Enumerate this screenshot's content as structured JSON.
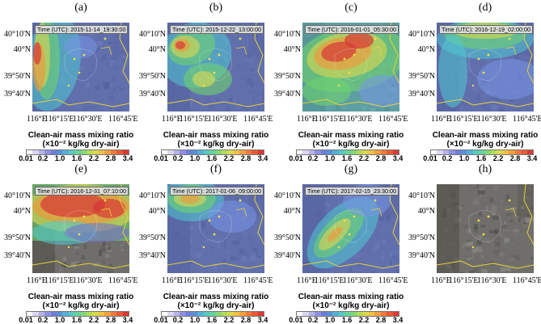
{
  "panels": [
    {
      "label": "(a)",
      "time": "Time (UTC): 2015-11-14_19:30:00",
      "pattern": "a"
    },
    {
      "label": "(b)",
      "time": "Time (UTC): 2015-12-22_13:00:00",
      "pattern": "b"
    },
    {
      "label": "(c)",
      "time": "Time (UTC): 2016-01-01_05:30:00",
      "pattern": "c"
    },
    {
      "label": "(d)",
      "time": "Time (UTC): 2016-12-19_02:00:00",
      "pattern": "d"
    },
    {
      "label": "(e)",
      "time": "Time (UTC): 2016-12-31_07:10:00",
      "pattern": "e"
    },
    {
      "label": "(f)",
      "time": "Time (UTC): 2017-01-06_09:00:00",
      "pattern": "f"
    },
    {
      "label": "(g)",
      "time": "Time (UTC): 2017-02-15_23:30:00",
      "pattern": "g"
    },
    {
      "label": "(h)",
      "time": "",
      "pattern": "h"
    }
  ],
  "y_ticks": [
    "40°10'N",
    "40°N",
    "39°50'N",
    "39°40'N"
  ],
  "x_ticks": [
    "116°E",
    "116°15'E",
    "116°30'E",
    "116°45'E"
  ],
  "colorbar": {
    "title_line1": "Clean-air mass mixing ratio",
    "title_line2": "(×10⁻² kg/kg dry-air)",
    "ticks": [
      "0.01",
      "0.2",
      "1.0",
      "1.6",
      "2.2",
      "2.8",
      "3.4"
    ],
    "colors": [
      "#ffffff",
      "#dcd6f2",
      "#b6b3ea",
      "#8f90e2",
      "#6d7fd8",
      "#5a8fd8",
      "#55b0d8",
      "#58c9c2",
      "#66d49a",
      "#86d873",
      "#b2dc5a",
      "#d9d84e",
      "#f0c046",
      "#f4a040",
      "#f17a3c",
      "#e55a36",
      "#d83a32"
    ]
  }
}
